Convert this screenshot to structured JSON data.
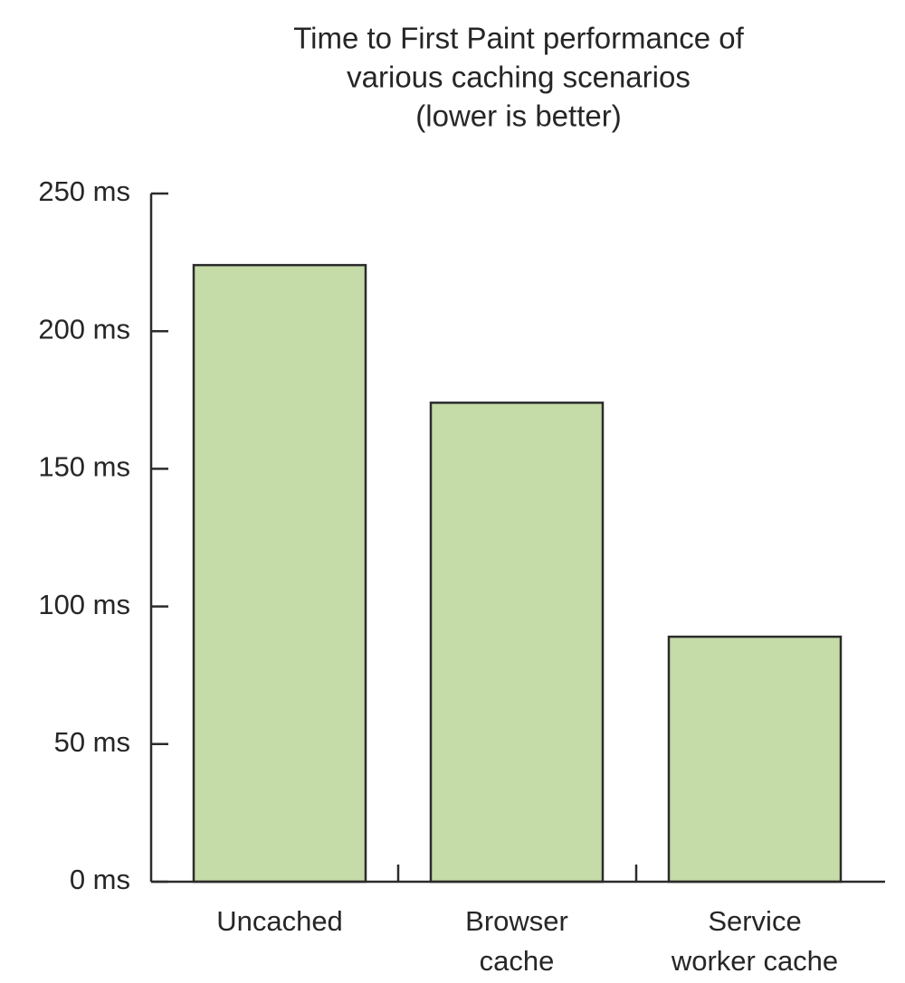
{
  "chart_data": {
    "type": "bar",
    "title_lines": [
      "Time to First Paint performance of",
      "various caching scenarios",
      "(lower is better)"
    ],
    "categories": [
      [
        "Uncached"
      ],
      [
        "Browser",
        "cache"
      ],
      [
        "Service",
        "worker cache"
      ]
    ],
    "values": [
      224,
      174,
      89
    ],
    "unit": "ms",
    "yticks": [
      "0 ms",
      "50 ms",
      "100 ms",
      "150 ms",
      "200 ms",
      "250 ms"
    ],
    "ylim": [
      0,
      250
    ],
    "grid": false,
    "legend": "none",
    "bar_color": "#c5dba8",
    "outline_color": "#2b2b2b"
  }
}
